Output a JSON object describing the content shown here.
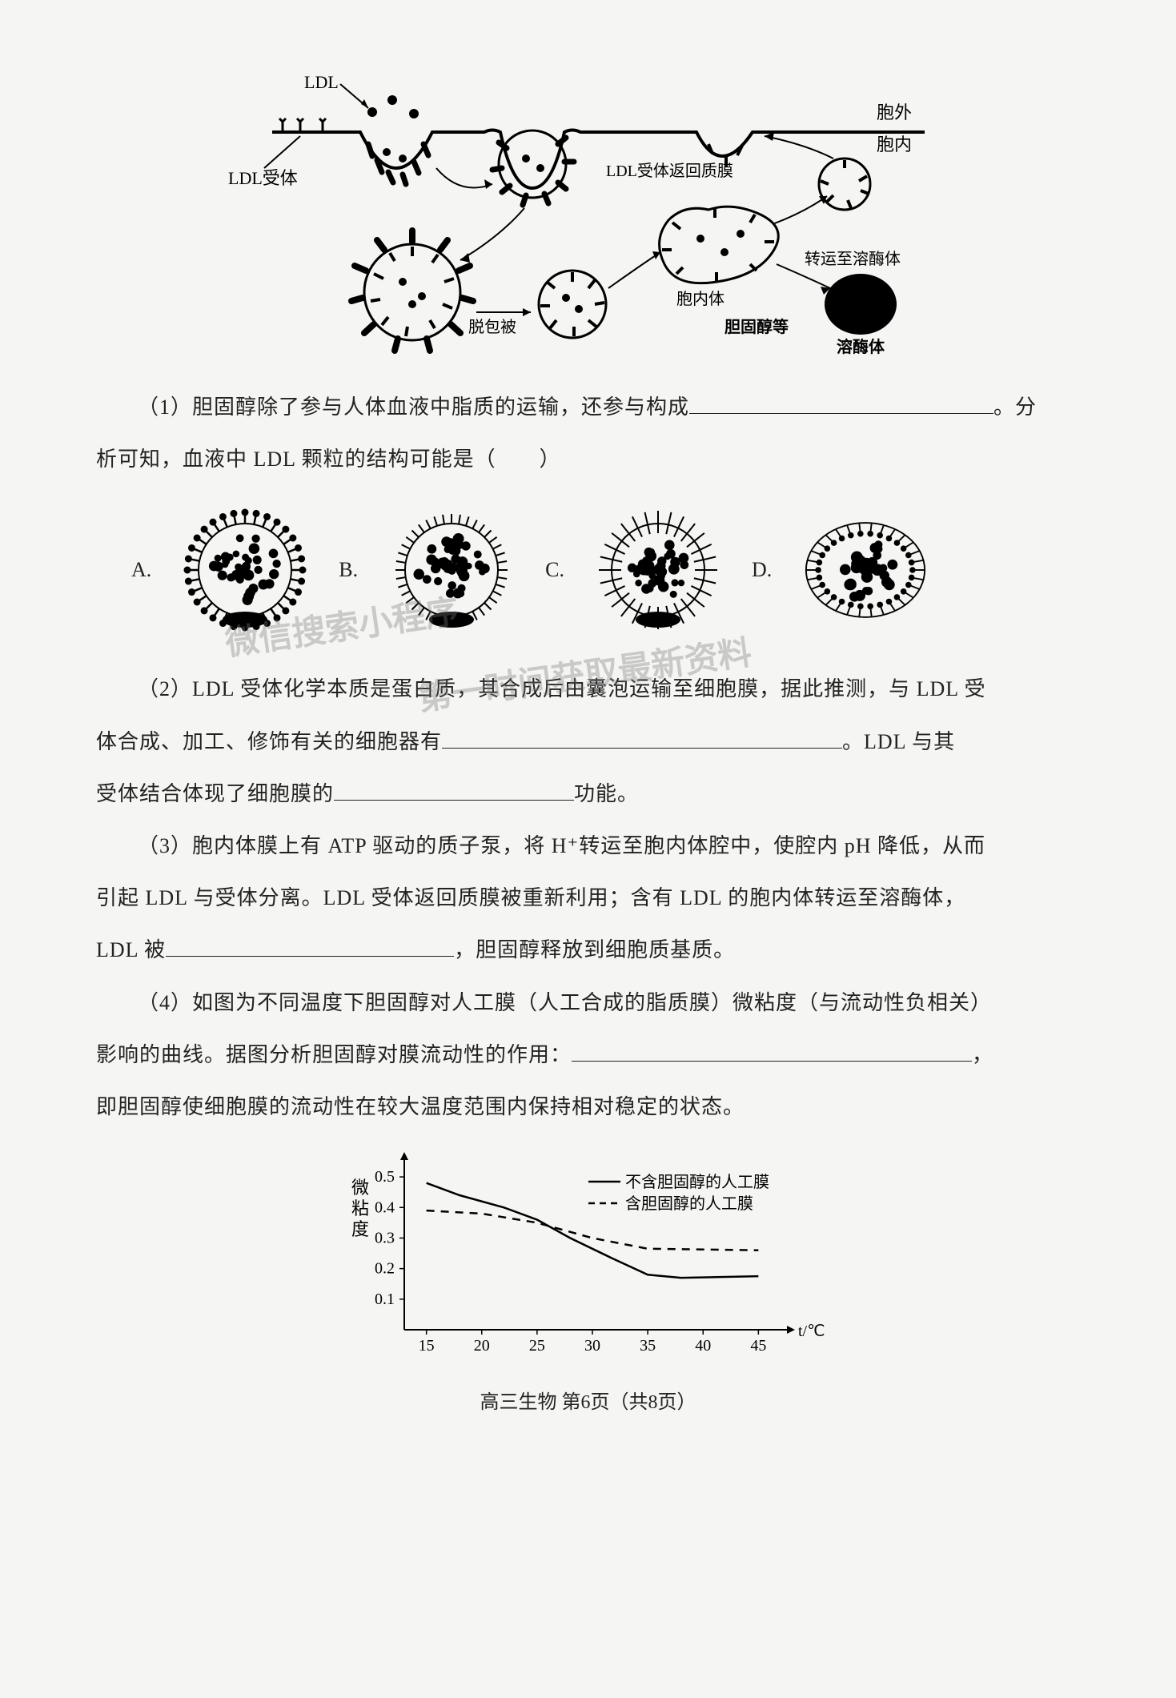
{
  "diagram": {
    "labels": {
      "ldl": "LDL",
      "receptor": "LDL受体",
      "exo": "胞外",
      "endo": "胞内",
      "receptor_return": "LDL受体返回质膜",
      "uncoat": "脱包被",
      "endosome": "胞内体",
      "to_lysosome": "转运至溶酶体",
      "cholesterol": "胆固醇等",
      "lysosome": "溶酶体"
    },
    "colors": {
      "stroke": "#000000",
      "fill_dark": "#000000",
      "bg": "#f5f5f3"
    },
    "line_width_membrane": 4,
    "line_width_arrow": 2
  },
  "questions": {
    "q1_a": "（1）胆固醇除了参与人体血液中脂质的运输，还参与构成",
    "q1_b": "。分",
    "q1_c": "析可知，血液中 LDL 颗粒的结构可能是（　　）",
    "options": [
      "A.",
      "B.",
      "C.",
      "D."
    ],
    "q2_a": "（2）LDL 受体化学本质是蛋白质，其合成后由囊泡运输至细胞膜，据此推测，与 LDL 受",
    "q2_b": "体合成、加工、修饰有关的细胞器有",
    "q2_c": "。LDL 与其",
    "q2_d": "受体结合体现了细胞膜的",
    "q2_e": "功能。",
    "q3_a": "（3）胞内体膜上有 ATP 驱动的质子泵，将 H⁺转运至胞内体腔中，使腔内 pH 降低，从而",
    "q3_b": "引起 LDL 与受体分离。LDL 受体返回质膜被重新利用；含有 LDL 的胞内体转运至溶酶体，",
    "q3_c": "LDL 被",
    "q3_d": "，胆固醇释放到细胞质基质。",
    "q4_a": "（4）如图为不同温度下胆固醇对人工膜（人工合成的脂质膜）微粘度（与流动性负相关）",
    "q4_b": "影响的曲线。据图分析胆固醇对膜流动性的作用：",
    "q4_c": "，",
    "q4_d": "即胆固醇使细胞膜的流动性在较大温度范围内保持相对稳定的状态。"
  },
  "chart": {
    "type": "line",
    "ylabel": "微粘度",
    "xlabel": "t/℃",
    "ylim": [
      0,
      0.55
    ],
    "xlim": [
      13,
      47
    ],
    "yticks": [
      0.1,
      0.2,
      0.3,
      0.4,
      0.5
    ],
    "xticks": [
      15,
      20,
      25,
      30,
      35,
      40,
      45
    ],
    "legend": {
      "solid": "不含胆固醇的人工膜",
      "dashed": "含胆固醇的人工膜"
    },
    "series_solid": {
      "x": [
        15,
        18,
        22,
        25,
        28,
        32,
        35,
        38,
        45
      ],
      "y": [
        0.48,
        0.44,
        0.4,
        0.36,
        0.3,
        0.23,
        0.18,
        0.17,
        0.175
      ]
    },
    "series_dashed": {
      "x": [
        15,
        20,
        25,
        30,
        35,
        45
      ],
      "y": [
        0.39,
        0.38,
        0.35,
        0.3,
        0.265,
        0.26
      ]
    },
    "colors": {
      "axis": "#000",
      "solid": "#000",
      "dashed": "#000",
      "bg": "#f5f5f3"
    },
    "line_width": 2.5,
    "font_size_axis": 20,
    "font_size_legend": 20
  },
  "footer": "高三生物  第6页（共8页）",
  "watermarks": [
    "微信搜索小程序",
    "第一时间获取最新资料"
  ]
}
